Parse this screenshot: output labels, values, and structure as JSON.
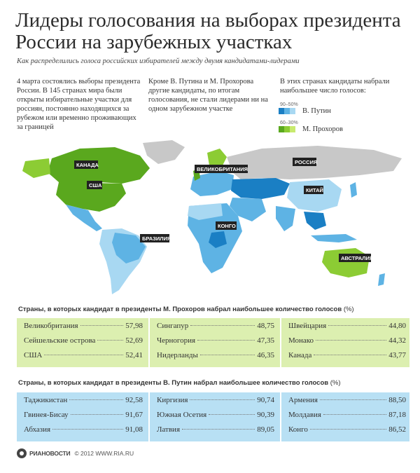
{
  "title": "Лидеры голосования на выборах президента России на зарубежных участках",
  "subtitle": "Как распределились голоса российских избирателей между двумя кандидатами-лидерами",
  "intro": {
    "col1": "4 марта состоялись выборы президента России. В 145 странах мира были открыты избирательные участки для россиян, постоянно находящихся за рубежом или временно проживающих за границей",
    "col2": "Кроме В. Путина и М. Прохорова другие кандидаты, по итогам голосования, не стали лидерами ни на одном зарубежном участке",
    "col3": "В этих странах кандидаты набрали наибольшее число голосов:"
  },
  "legend": [
    {
      "range": "90–50%",
      "label": "В. Путин",
      "colors": [
        "#1a7fc4",
        "#5eb3e4",
        "#a8d8f2"
      ]
    },
    {
      "range": "60–30%",
      "label": "М. Прохоров",
      "colors": [
        "#5aa81e",
        "#8ccc34",
        "#c8ea6e"
      ]
    }
  ],
  "map": {
    "labels": [
      "КАНАДА",
      "США",
      "ВЕЛИКОБРИТАНИЯ",
      "РОССИЯ",
      "КИТАЙ",
      "КОНГО",
      "БРАЗИЛИЯ",
      "АВСТРАЛИЯ"
    ],
    "colors": {
      "putin_dark": "#1a7fc4",
      "putin_mid": "#5eb3e4",
      "putin_light": "#a8d8f2",
      "prokhorov_dark": "#5aa81e",
      "prokhorov_mid": "#8ccc34",
      "prokhorov_light": "#c8ea6e",
      "no_data": "#c8c8c8"
    }
  },
  "prokhorov_table": {
    "heading": "Страны, в которых кандидат в президенты М. Прохоров набрал наибольшее количество голосов",
    "unit": "(%)",
    "columns": [
      [
        {
          "name": "Великобритания",
          "value": "57,98"
        },
        {
          "name": "Сейшельские острова",
          "value": "52,69"
        },
        {
          "name": "США",
          "value": "52,41"
        }
      ],
      [
        {
          "name": "Сингапур",
          "value": "48,75"
        },
        {
          "name": "Черногория",
          "value": "47,35"
        },
        {
          "name": "Нидерланды",
          "value": "46,35"
        }
      ],
      [
        {
          "name": "Швейцария",
          "value": "44,80"
        },
        {
          "name": "Монако",
          "value": "44,32"
        },
        {
          "name": "Канада",
          "value": "43,77"
        }
      ]
    ]
  },
  "putin_table": {
    "heading": "Страны, в которых кандидат в президенты В. Путин набрал наибольшее количество голосов",
    "unit": "(%)",
    "columns": [
      [
        {
          "name": "Таджикистан",
          "value": "92,58"
        },
        {
          "name": "Гвинея-Бисау",
          "value": "91,67"
        },
        {
          "name": "Абхазия",
          "value": "91,08"
        }
      ],
      [
        {
          "name": "Киргизия",
          "value": "90,74"
        },
        {
          "name": "Южная Осетия",
          "value": "90,39"
        },
        {
          "name": "Латвия",
          "value": "89,05"
        }
      ],
      [
        {
          "name": "Армения",
          "value": "88,50"
        },
        {
          "name": "Молдавия",
          "value": "87,18"
        },
        {
          "name": "Конго",
          "value": "86,52"
        }
      ]
    ]
  },
  "footer": {
    "logo": "РИАНОВОСТИ",
    "copyright": "© 2012 WWW.RIA.RU"
  }
}
